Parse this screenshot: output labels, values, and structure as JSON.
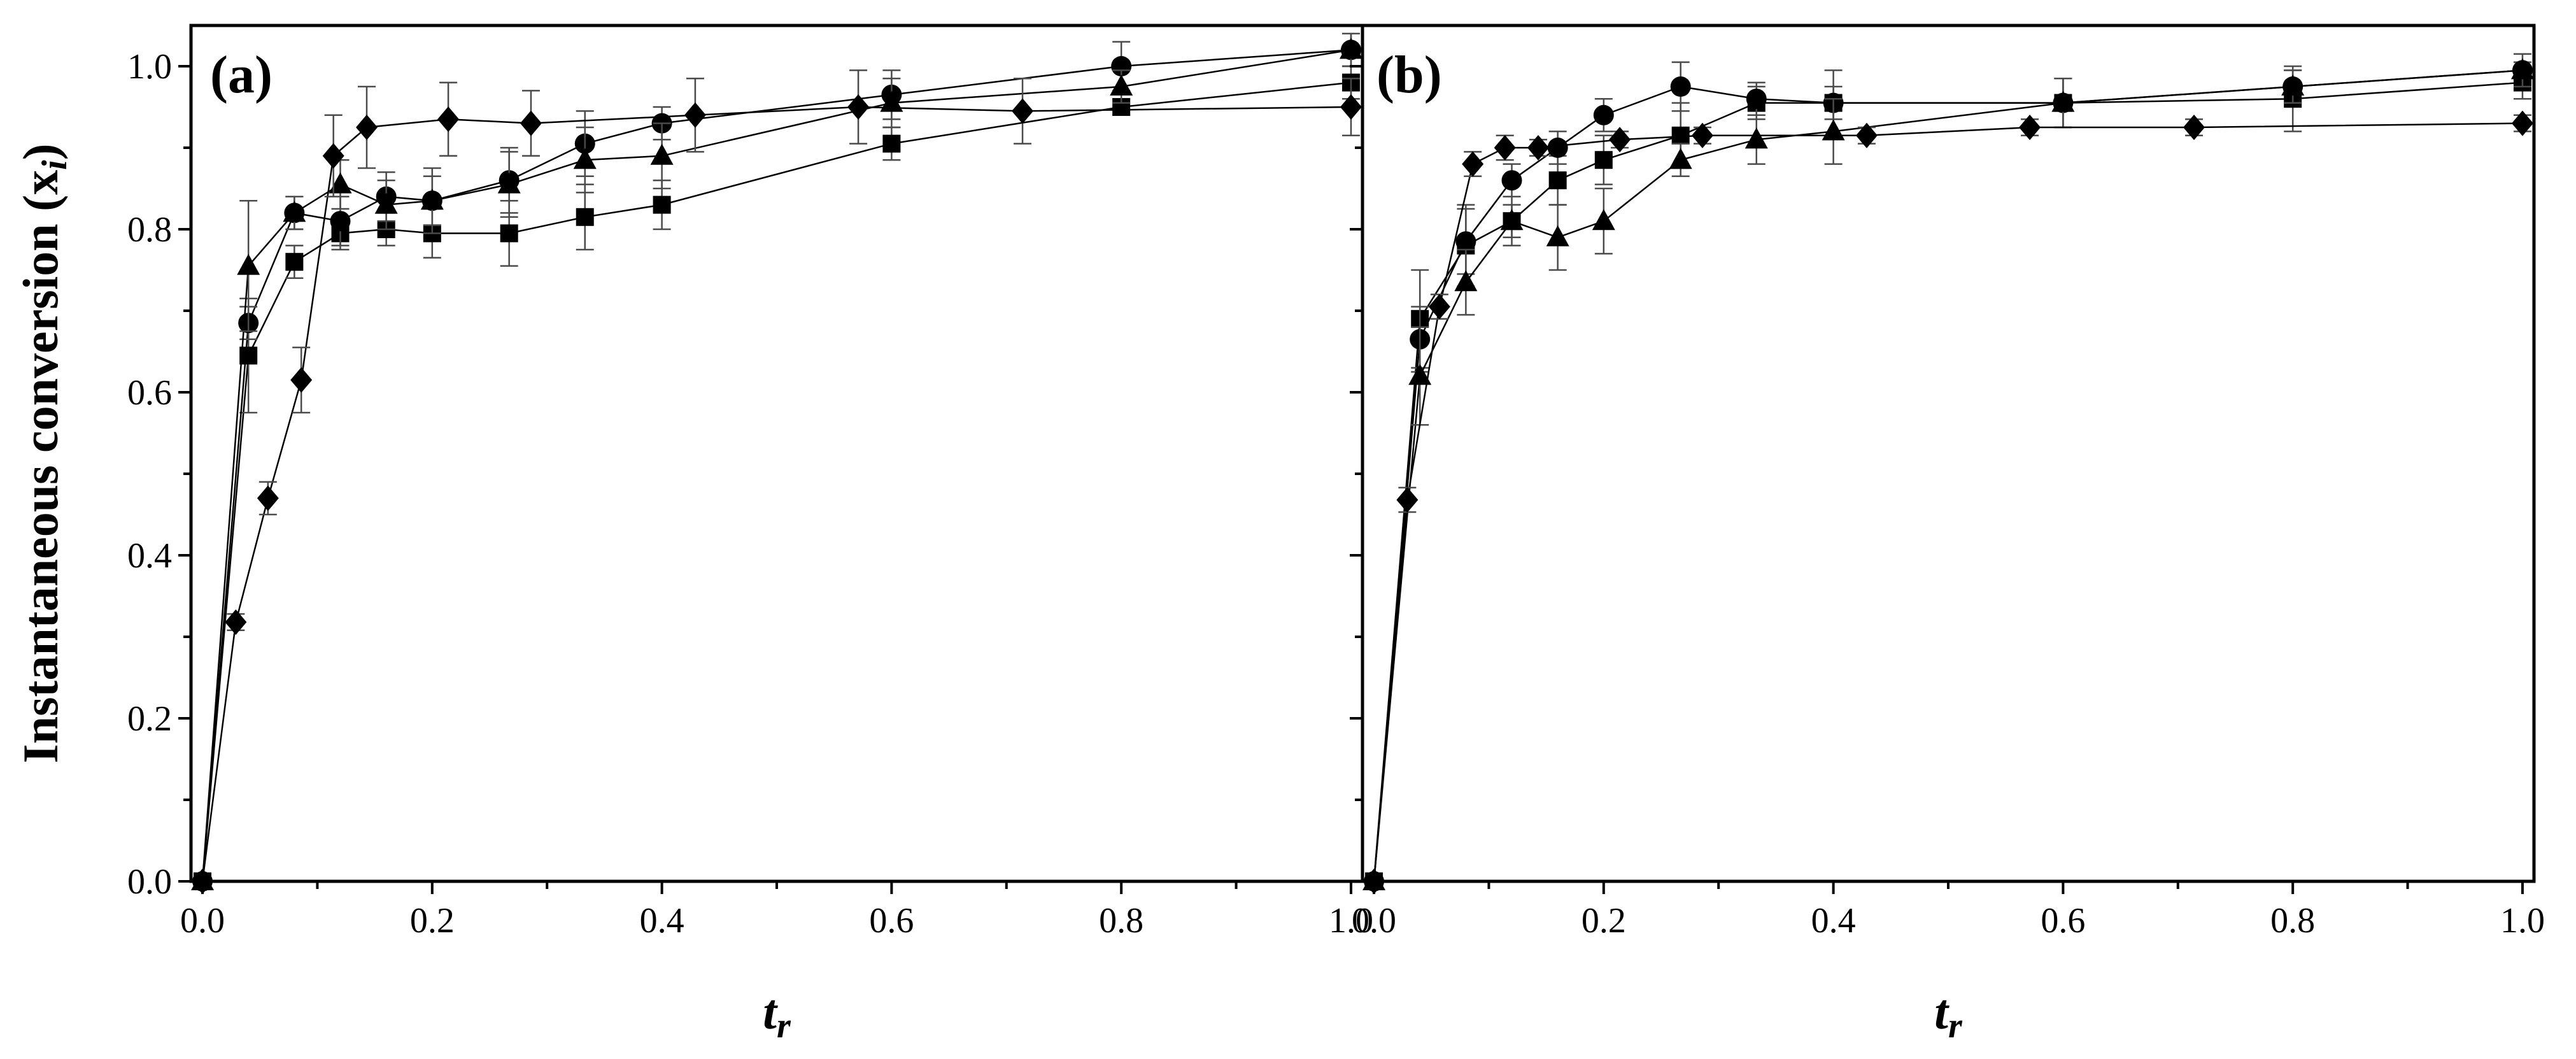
{
  "chart_data": [
    {
      "type": "line",
      "panel_label": "(a)",
      "xlabel": "t",
      "xlabel_sub": "r",
      "ylabel": "Instantaneous conversion (x",
      "ylabel_sub": "i",
      "ylabel_close": ")",
      "xlim": [
        -0.01,
        1.01
      ],
      "ylim": [
        0.0,
        1.05
      ],
      "x_ticks": [
        "0.0",
        "0.2",
        "0.4",
        "0.6",
        "0.8",
        "1.0"
      ],
      "y_ticks": [
        "0.0",
        "0.2",
        "0.4",
        "0.6",
        "0.8",
        "1.0"
      ],
      "series": [
        {
          "name": "square",
          "marker": "square",
          "x": [
            0,
            0.04,
            0.08,
            0.12,
            0.16,
            0.2,
            0.267,
            0.333,
            0.4,
            0.6,
            0.8,
            1.0
          ],
          "y": [
            0,
            0.645,
            0.76,
            0.795,
            0.8,
            0.795,
            0.795,
            0.815,
            0.83,
            0.905,
            0.95,
            0.98
          ],
          "err": [
            0,
            0.07,
            0.02,
            0.02,
            0.02,
            0.03,
            0.04,
            0.04,
            0.03,
            0.02,
            0.01,
            0.02
          ]
        },
        {
          "name": "circle",
          "marker": "circle",
          "x": [
            0,
            0.04,
            0.08,
            0.12,
            0.16,
            0.2,
            0.267,
            0.333,
            0.4,
            0.6,
            0.8,
            1.0
          ],
          "y": [
            0,
            0.685,
            0.82,
            0.81,
            0.84,
            0.835,
            0.86,
            0.905,
            0.93,
            0.965,
            1.0,
            1.02
          ],
          "err": [
            0,
            0.02,
            0.02,
            0.03,
            0.03,
            0.04,
            0.04,
            0.04,
            0.02,
            0.03,
            0.03,
            0.02
          ]
        },
        {
          "name": "triangle",
          "marker": "triangle",
          "x": [
            0,
            0.04,
            0.08,
            0.12,
            0.16,
            0.2,
            0.267,
            0.333,
            0.4,
            0.6,
            0.8,
            1.0
          ],
          "y": [
            0,
            0.755,
            0.82,
            0.855,
            0.83,
            0.835,
            0.855,
            0.885,
            0.89,
            0.955,
            0.975,
            1.02
          ],
          "err": [
            0,
            0.08,
            0.02,
            0.03,
            0.03,
            0.03,
            0.04,
            0.04,
            0.04,
            0.03,
            0.02,
            0.02
          ]
        },
        {
          "name": "diamond",
          "marker": "diamond",
          "x": [
            0,
            0.029,
            0.057,
            0.086,
            0.114,
            0.143,
            0.214,
            0.286,
            0.429,
            0.571,
            0.714,
            1.0
          ],
          "y": [
            0,
            0.318,
            0.47,
            0.615,
            0.89,
            0.925,
            0.935,
            0.93,
            0.94,
            0.95,
            0.945,
            0.95
          ],
          "err": [
            0,
            0.01,
            0.02,
            0.04,
            0.05,
            0.05,
            0.045,
            0.04,
            0.045,
            0.045,
            0.04,
            0.035
          ]
        }
      ]
    },
    {
      "type": "line",
      "panel_label": "(b)",
      "xlabel": "t",
      "xlabel_sub": "r",
      "xlim": [
        -0.01,
        1.01
      ],
      "ylim": [
        0.0,
        1.05
      ],
      "x_ticks": [
        "0.0",
        "0.2",
        "0.4",
        "0.6",
        "0.8",
        "1.0"
      ],
      "series": [
        {
          "name": "square",
          "marker": "square",
          "x": [
            0,
            0.04,
            0.08,
            0.12,
            0.16,
            0.2,
            0.267,
            0.333,
            0.4,
            0.6,
            0.8,
            1.0
          ],
          "y": [
            0,
            0.69,
            0.78,
            0.81,
            0.86,
            0.885,
            0.915,
            0.955,
            0.955,
            0.955,
            0.96,
            0.98
          ],
          "err": [
            0,
            0.06,
            0.05,
            0.02,
            0.03,
            0.03,
            0.04,
            0.02,
            0.02,
            0.03,
            0.04,
            0.02
          ]
        },
        {
          "name": "circle",
          "marker": "circle",
          "x": [
            0,
            0.04,
            0.08,
            0.12,
            0.16,
            0.2,
            0.267,
            0.333,
            0.4,
            0.6,
            0.8,
            1.0
          ],
          "y": [
            0,
            0.665,
            0.785,
            0.86,
            0.9,
            0.94,
            0.975,
            0.96,
            0.955,
            0.955,
            0.975,
            0.995
          ],
          "err": [
            0,
            0.04,
            0.04,
            0.02,
            0.02,
            0.02,
            0.03,
            0.02,
            0.04,
            0.03,
            0.02,
            0.01
          ]
        },
        {
          "name": "triangle",
          "marker": "triangle",
          "x": [
            0,
            0.04,
            0.08,
            0.12,
            0.16,
            0.2,
            0.267,
            0.333,
            0.4,
            0.6,
            0.8,
            1.0
          ],
          "y": [
            0,
            0.62,
            0.735,
            0.81,
            0.79,
            0.81,
            0.885,
            0.91,
            0.92,
            0.955,
            0.975,
            0.995
          ],
          "err": [
            0,
            0.06,
            0.04,
            0.03,
            0.04,
            0.04,
            0.02,
            0.03,
            0.04,
            0.03,
            0.02,
            0.02
          ]
        },
        {
          "name": "diamond",
          "marker": "diamond",
          "x": [
            0,
            0.029,
            0.057,
            0.086,
            0.114,
            0.143,
            0.214,
            0.286,
            0.429,
            0.571,
            0.714,
            1.0
          ],
          "y": [
            0,
            0.468,
            0.705,
            0.88,
            0.9,
            0.9,
            0.91,
            0.915,
            0.915,
            0.925,
            0.925,
            0.93
          ],
          "err": [
            0,
            0.015,
            0.015,
            0.015,
            0.015,
            0.01,
            0.01,
            0.01,
            0.01,
            0.01,
            0.01,
            0.01
          ]
        }
      ]
    }
  ]
}
